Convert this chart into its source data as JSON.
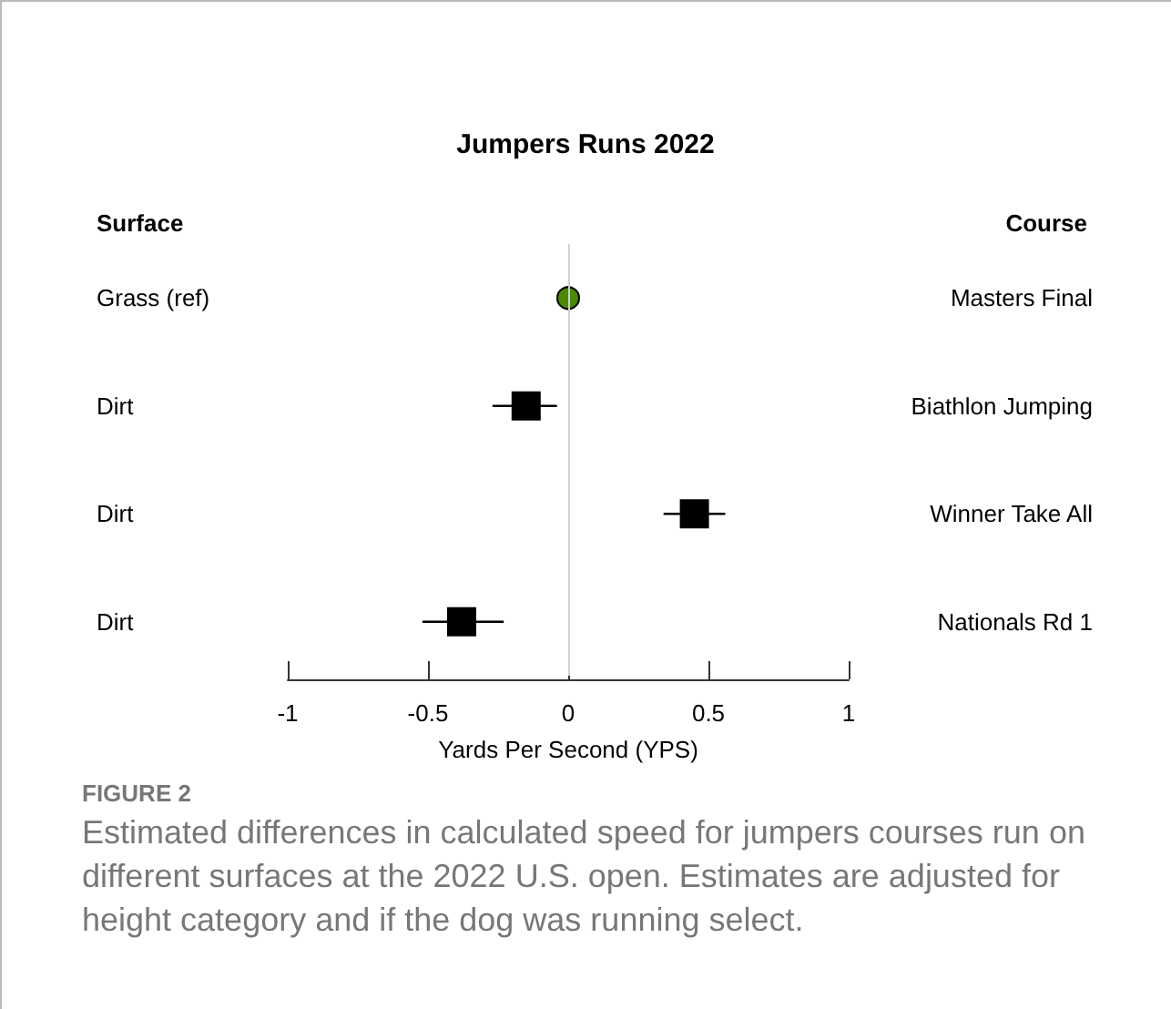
{
  "chart_data": {
    "type": "scatter",
    "orientation": "horizontal",
    "title": "Jumpers Runs 2022",
    "ylabel": "Surface",
    "xlabel": "Yards Per Second (YPS)",
    "categories": [
      "Grass (ref)",
      "Dirt",
      "Dirt",
      "Dirt"
    ],
    "y2_categories": [
      "Masters Final",
      "Biathlon Jumping",
      "Winner Take All",
      "Nationals Rd 1"
    ],
    "series": [
      {
        "color": "#4a8a00",
        "marker": "circle",
        "values": [
          0,
          null,
          null,
          null
        ]
      },
      {
        "color": "#000000",
        "marker": "square",
        "values": [
          null,
          -0.15,
          0.45,
          -0.38
        ],
        "errors": [
          null,
          [
            -0.27,
            -0.04
          ],
          [
            0.34,
            0.56
          ],
          [
            -0.52,
            -0.23
          ]
        ]
      }
    ],
    "xlim": [
      -1,
      1
    ],
    "xticks": [
      -1,
      -0.5,
      0,
      0.5,
      1
    ],
    "ref_lines": [
      {
        "axis": "x",
        "value": 0,
        "color": "#d0d0d0"
      }
    ],
    "annotations": [
      "Course",
      "FIGURE 2",
      "Estimated differences in calculated speed for jumpers courses run on different surfaces at the 2022 U.S. open. Estimates are adjusted for height category and if the dog was running select."
    ]
  }
}
